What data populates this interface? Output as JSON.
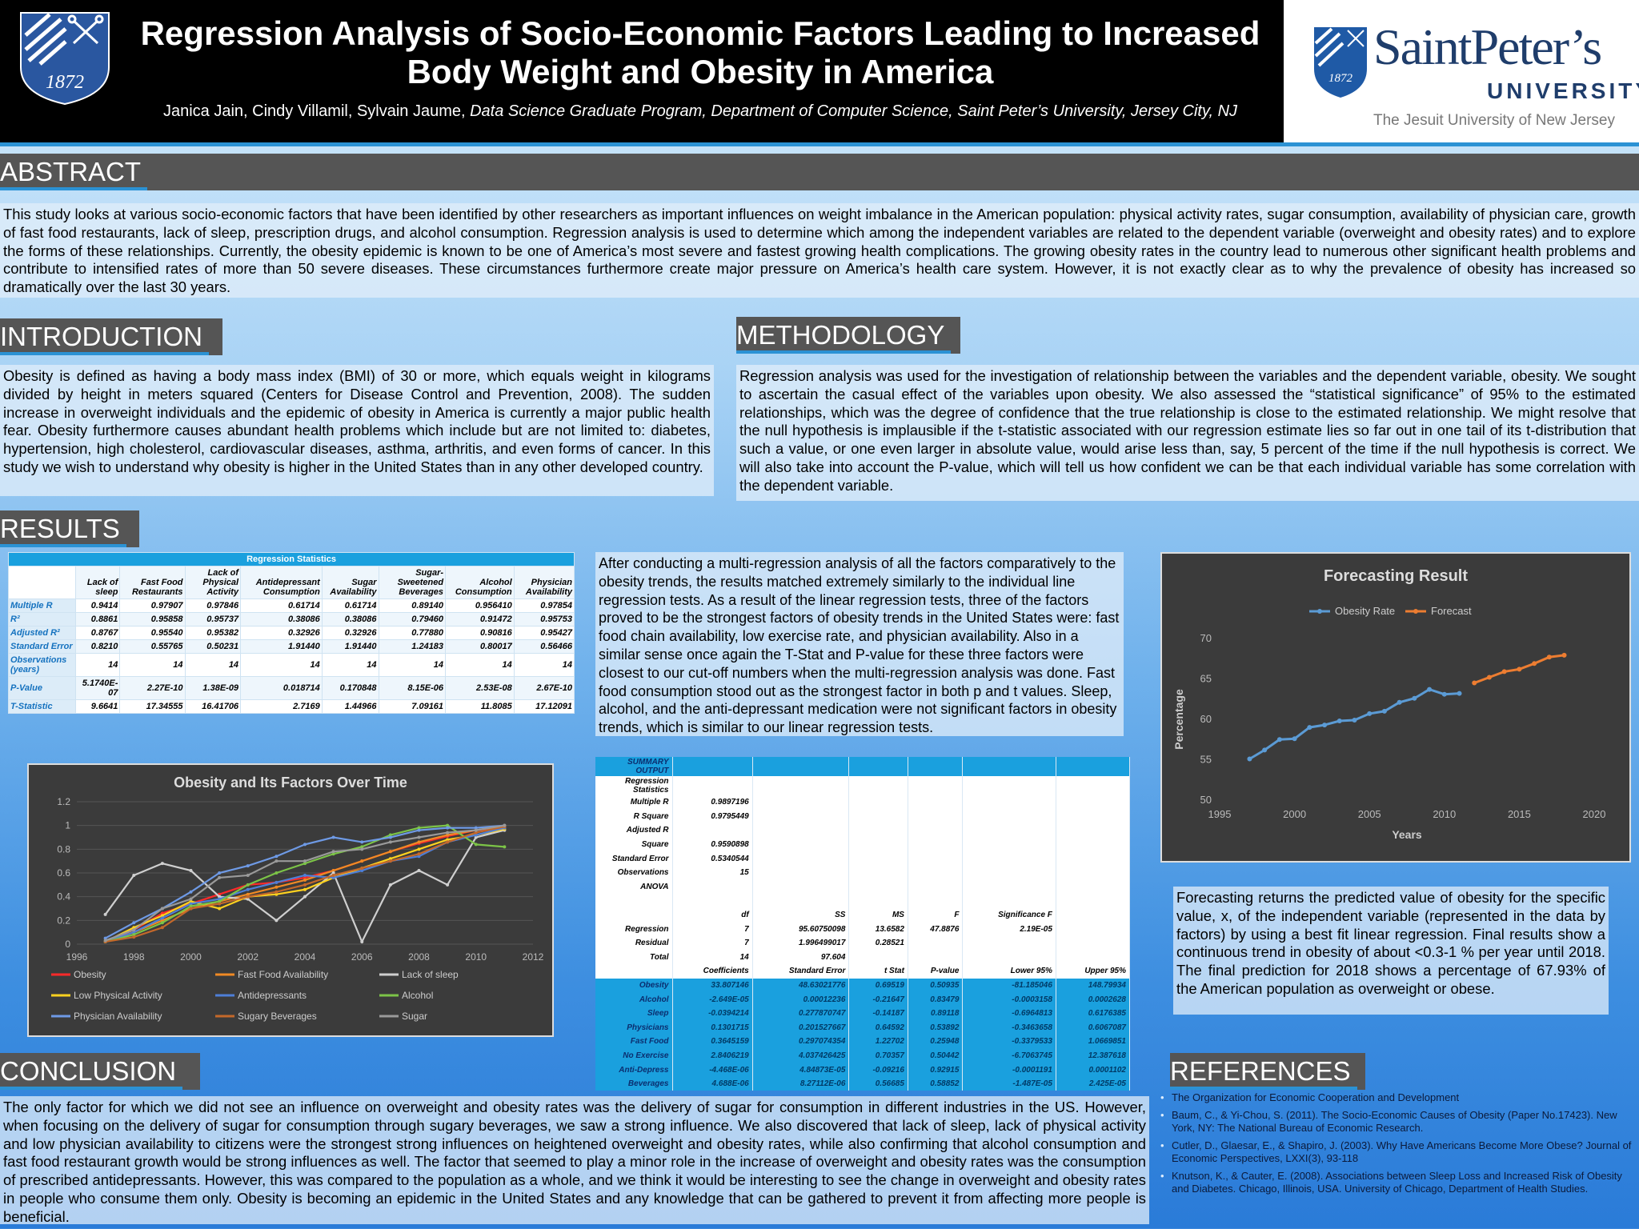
{
  "header": {
    "title_line1": "Regression Analysis of Socio-Economic Factors Leading to Increased",
    "title_line2": "Body Weight and Obesity in America",
    "authors": "Janica Jain, Cindy Villamil, Sylvain Jaume, ",
    "affiliation": "Data Science Graduate Program, Department of Computer Science, Saint Peter’s University, Jersey City, NJ",
    "logo_year": "1872",
    "university_name": "SaintPeter’s",
    "university_word": "UNIVERSITY",
    "university_tagline": "The Jesuit University of New Jersey"
  },
  "abstract": {
    "heading": "ABSTRACT",
    "text": "This study looks at various socio-economic factors that have been identified by other researchers as important influences on weight imbalance in the American population: physical activity rates, sugar consumption, availability of physician care, growth of fast food restaurants, lack of sleep, prescription drugs, and alcohol consumption. Regression analysis is used to determine which among the independent variables are related to the dependent variable (overweight and obesity rates) and to explore the forms of these relationships. Currently, the obesity epidemic is known to be one of America’s most severe and fastest growing health complications. The growing obesity rates in the country lead to numerous other significant health problems and contribute to intensified rates of more than 50 severe diseases. These circumstances furthermore create major pressure on America’s health care system. However, it is not exactly clear as to why the prevalence of obesity has increased so dramatically over the last 30 years."
  },
  "introduction": {
    "heading": "INTRODUCTION",
    "text": "Obesity is defined as having a body mass index (BMI) of 30 or more, which equals weight in kilograms divided by height in meters squared (Centers for Disease Control and Prevention, 2008). The sudden increase in overweight individuals and the epidemic of obesity in America is currently a major public health fear. Obesity furthermore causes abundant health problems which include but are not limited to: diabetes, hypertension, high cholesterol, cardiovascular diseases, asthma, arthritis, and even forms of cancer.  In this study we wish to understand why obesity is higher in the United States than in any other developed country."
  },
  "methodology": {
    "heading": "METHODOLOGY",
    "text": "Regression analysis was used for the investigation of relationship between the variables and the dependent variable, obesity. We sought to ascertain the casual effect of the variables upon obesity. We also assessed the “statistical significance” of 95% to the estimated relationships, which was the degree of confidence that the true relationship is close to the estimated relationship. We might resolve that the null hypothesis is implausible if the t-statistic associated with our regression estimate lies so far out in one tail of its t-distribution that such a value, or one even larger in absolute value, would arise less than, say, 5 percent of the time if the null hypothesis is correct. We will also take into account the P-value, which will tell us how confident we can be that each individual variable has some correlation with the dependent variable."
  },
  "results": {
    "heading": "RESULTS",
    "text": "After conducting a multi-regression analysis of all the factors comparatively to the obesity trends, the results matched extremely similarly to the individual line regression tests. As a result of the linear regression tests, three of the factors proved to be the strongest factors of obesity trends in the United States were: fast food chain availability, low exercise rate, and physician availability. Also in a similar sense once again the T-Stat and P-value for these three factors were closest to our cut-off numbers when the multi-regression analysis was done. Fast food consumption stood out as the strongest factor in both p and t values. Sleep, alcohol, and the anti-depressant medication were not significant factors in obesity trends, which is similar to our linear regression tests.",
    "reg_table": {
      "caption": "Regression Statistics",
      "columns": [
        "Lack of sleep",
        "Fast Food Restaurants",
        "Lack of Physical Activity",
        "Antidepressant Consumption",
        "Sugar Availability",
        "Sugar-Sweetened Beverages",
        "Alcohol Consumption",
        "Physician Availability"
      ],
      "rows": [
        {
          "label": "Multiple R",
          "values": [
            "0.9414",
            "0.97907",
            "0.97846",
            "0.61714",
            "0.61714",
            "0.89140",
            "0.956410",
            "0.97854"
          ]
        },
        {
          "label": "R²",
          "values": [
            "0.8861",
            "0.95858",
            "0.95737",
            "0.38086",
            "0.38086",
            "0.79460",
            "0.91472",
            "0.95753"
          ]
        },
        {
          "label": "Adjusted R²",
          "values": [
            "0.8767",
            "0.95540",
            "0.95382",
            "0.32926",
            "0.32926",
            "0.77880",
            "0.90816",
            "0.95427"
          ]
        },
        {
          "label": "Standard Error",
          "values": [
            "0.8210",
            "0.55765",
            "0.50231",
            "1.91440",
            "1.91440",
            "1.24183",
            "0.80017",
            "0.56466"
          ]
        },
        {
          "label": "Observations (years)",
          "values": [
            "14",
            "14",
            "14",
            "14",
            "14",
            "14",
            "14",
            "14"
          ]
        },
        {
          "label": "P-Value",
          "values": [
            "5.1740E-07",
            "2.27E-10",
            "1.38E-09",
            "0.018714",
            "0.170848",
            "8.15E-06",
            "2.53E-08",
            "2.67E-10"
          ]
        },
        {
          "label": "T-Statistic",
          "values": [
            "9.6641",
            "17.34555",
            "16.41706",
            "2.7169",
            "1.44966",
            "7.09161",
            "11.8085",
            "17.12091"
          ]
        }
      ]
    },
    "summary": {
      "rows": [
        [
          "SUMMARY OUTPUT",
          "",
          "",
          "",
          "",
          ""
        ],
        [
          "Regression Statistics",
          "",
          "",
          "",
          "",
          ""
        ],
        [
          "Multiple R",
          "0.9897196",
          "",
          "",
          "",
          ""
        ],
        [
          "R Square",
          "0.9795449",
          "",
          "",
          "",
          ""
        ],
        [
          "Adjusted R",
          "",
          "",
          "",
          "",
          ""
        ],
        [
          "Square",
          "0.9590898",
          "",
          "",
          "",
          ""
        ],
        [
          "Standard Error",
          "0.5340544",
          "",
          "",
          "",
          ""
        ],
        [
          "Observations",
          "15",
          "",
          "",
          "",
          ""
        ],
        [
          "ANOVA",
          "",
          "",
          "",
          "",
          ""
        ],
        [
          "",
          "",
          "",
          "",
          "",
          ""
        ],
        [
          "df",
          "SS",
          "MS",
          "F",
          "Significance F",
          ""
        ],
        [
          "Regression",
          "7",
          "95.60750098",
          "13.6582",
          "47.8876",
          "2.19E-05"
        ],
        [
          "Residual",
          "7",
          "1.996499017",
          "0.28521",
          "",
          ""
        ],
        [
          "Total",
          "14",
          "97.604",
          "",
          "",
          ""
        ],
        [
          "Coefficients",
          "Standard Error",
          "t Stat",
          "P-value",
          "Lower 95%",
          "Upper 95%"
        ],
        [
          "Obesity",
          "33.807146",
          "48.63021776",
          "0.69519",
          "0.50935",
          "-81.185046",
          "148.79934"
        ],
        [
          "Alcohol",
          "-2.649E-05",
          "0.00012236",
          "-0.21647",
          "0.83479",
          "-0.0003158",
          "0.0002628"
        ],
        [
          "Sleep",
          "-0.0394214",
          "0.277870747",
          "-0.14187",
          "0.89118",
          "-0.6964813",
          "0.6176385"
        ],
        [
          "Physicians",
          "0.1301715",
          "0.201527667",
          "0.64592",
          "0.53892",
          "-0.3463658",
          "0.6067087"
        ],
        [
          "Fast Food",
          "0.3645159",
          "0.297074354",
          "1.22702",
          "0.25948",
          "-0.3379533",
          "1.0669851"
        ],
        [
          "No Exercise",
          "2.8406219",
          "4.037426425",
          "0.70357",
          "0.50442",
          "-6.7063745",
          "12.387618"
        ],
        [
          "Anti-Depress",
          "-4.468E-06",
          "4.84873E-05",
          "-0.09216",
          "0.92915",
          "-0.0001191",
          "0.0001102"
        ],
        [
          "Beverages",
          "4.688E-06",
          "8.27112E-06",
          "0.56685",
          "0.58852",
          "-1.487E-05",
          "2.425E-05"
        ]
      ]
    }
  },
  "forecast_text": "Forecasting returns the predicted value of obesity for the specific value, x, of the independent variable (represented in the data by factors) by using a best fit linear regression. Final results show a continuous trend in obesity of about <0.3-1 % per year until 2018. The final prediction for 2018 shows a percentage of 67.93% of the American population as overweight or obese.",
  "conclusion": {
    "heading": "CONCLUSION",
    "text": "The only factor for which we did not see an influence on overweight and obesity rates was the delivery of sugar for consumption in different industries in the US. However, when focusing on the delivery of sugar for consumption through sugary beverages, we saw a strong influence. We also discovered that lack of sleep, lack of physical activity and low physician availability to citizens were the strongest strong influences on heightened overweight and obesity rates, while also confirming that alcohol consumption and fast food restaurant growth would be strong influences as well. The factor that seemed to play a minor role in the increase of overweight and obesity rates was the consumption of prescribed antidepressants. However, this was compared to the population as a whole, and we think it would be interesting to see the change in overweight and obesity rates in people who consume them only. Obesity is becoming an epidemic in the United States and any knowledge that can be gathered to prevent it from affecting more people is beneficial."
  },
  "references": {
    "heading": "REFERENCES",
    "items": [
      "The Organization for Economic Cooperation and Development",
      "Baum, C., & Yi-Chou, S. (2011). The Socio-Economic Causes of Obesity (Paper No.17423). New York, NY: The National Bureau of Economic Research.",
      " Cutler, D., Glaesar, E., & Shapiro, J. (2003). Why Have Americans Become More Obese? Journal of Economic Perspectives, LXXI(3), 93-118",
      "Knutson, K., & Cauter, E. (2008). Associations between Sleep Loss and Increased Risk of Obesity and Diabetes. Chicago, Illinois, USA. University of Chicago, Department of Health Studies."
    ]
  },
  "colors": {
    "header_bg": "#000000",
    "section_head_bg": "#555555",
    "accent_blue": "#2b92d4",
    "table_header": "#1aa0de"
  },
  "chart_data": [
    {
      "type": "line",
      "title": "Obesity and Its Factors Over Time",
      "xlabel": "",
      "ylabel": "",
      "xlim": [
        1996,
        2012
      ],
      "ylim": [
        0,
        1.2
      ],
      "x_ticks": [
        "1996",
        "1998",
        "2000",
        "2002",
        "2004",
        "2006",
        "2008",
        "2010",
        "2012"
      ],
      "y_ticks": [
        "0",
        "0.2",
        "0.4",
        "0.6",
        "0.8",
        "1",
        "1.2"
      ],
      "legend_position": "bottom",
      "x": [
        1997,
        1998,
        1999,
        2000,
        2001,
        2002,
        2003,
        2004,
        2005,
        2006,
        2007,
        2008,
        2009,
        2010,
        2011
      ],
      "series": [
        {
          "name": "Obesity",
          "color": "#ff2a2a",
          "values": [
            0.02,
            0.12,
            0.26,
            0.34,
            0.42,
            0.5,
            0.52,
            0.56,
            0.62,
            0.7,
            0.78,
            0.85,
            0.91,
            0.96,
            0.99
          ]
        },
        {
          "name": "Fast Food Availability",
          "color": "#f08a24",
          "values": [
            0.02,
            0.1,
            0.2,
            0.3,
            0.36,
            0.42,
            0.48,
            0.54,
            0.62,
            0.7,
            0.78,
            0.86,
            0.92,
            0.96,
            1.0
          ]
        },
        {
          "name": "Lack of sleep",
          "color": "#cfcfcf",
          "values": [
            0.25,
            0.58,
            0.68,
            0.62,
            0.4,
            0.38,
            0.2,
            0.4,
            0.6,
            0.02,
            0.5,
            0.62,
            0.5,
            0.9,
            0.96
          ]
        },
        {
          "name": "Low Physical Activity",
          "color": "#ffd21f",
          "values": [
            0.02,
            0.14,
            0.24,
            0.36,
            0.3,
            0.4,
            0.42,
            0.46,
            0.56,
            0.64,
            0.72,
            0.8,
            0.88,
            0.92,
            0.97
          ]
        },
        {
          "name": "Antidepressants",
          "color": "#4e7fd8",
          "values": [
            0.02,
            0.1,
            0.22,
            0.34,
            0.38,
            0.46,
            0.52,
            0.58,
            0.56,
            0.62,
            0.7,
            0.74,
            0.86,
            0.92,
            0.98
          ]
        },
        {
          "name": "Alcohol",
          "color": "#7cc447",
          "values": [
            0.02,
            0.08,
            0.18,
            0.32,
            0.36,
            0.5,
            0.6,
            0.68,
            0.76,
            0.82,
            0.92,
            0.98,
            1.0,
            0.84,
            0.82
          ]
        },
        {
          "name": "Physician Availability",
          "color": "#6e9ae6",
          "values": [
            0.05,
            0.18,
            0.3,
            0.44,
            0.6,
            0.66,
            0.74,
            0.84,
            0.9,
            0.86,
            0.9,
            0.96,
            0.98,
            0.98,
            1.0
          ]
        },
        {
          "name": "Sugary Beverages",
          "color": "#c4682a",
          "values": [
            0.02,
            0.06,
            0.14,
            0.3,
            0.34,
            0.4,
            0.44,
            0.5,
            0.58,
            0.64,
            0.7,
            0.76,
            0.86,
            0.94,
            0.99
          ]
        },
        {
          "name": "Sugar",
          "color": "#9a9a9a",
          "values": [
            0.03,
            0.12,
            0.3,
            0.38,
            0.56,
            0.58,
            0.7,
            0.7,
            0.78,
            0.8,
            0.86,
            0.9,
            0.94,
            0.96,
            1.0
          ]
        }
      ]
    },
    {
      "type": "line",
      "title": "Forecasting Result",
      "xlabel": "Years",
      "ylabel": "Percentage",
      "xlim": [
        1995,
        2020
      ],
      "ylim": [
        50,
        70
      ],
      "x_ticks": [
        "1995",
        "2000",
        "2005",
        "2010",
        "2015",
        "2020"
      ],
      "y_ticks": [
        "50",
        "55",
        "60",
        "65",
        "70"
      ],
      "legend_position": "top",
      "series": [
        {
          "name": "Obesity Rate",
          "color": "#5b9bd5",
          "x": [
            1997,
            1998,
            1999,
            2000,
            2001,
            2002,
            2003,
            2004,
            2005,
            2006,
            2007,
            2008,
            2009,
            2010,
            2011
          ],
          "values": [
            55.1,
            56.2,
            57.5,
            57.6,
            59.0,
            59.3,
            59.8,
            59.9,
            60.7,
            61.0,
            62.1,
            62.6,
            63.7,
            63.1,
            63.2
          ]
        },
        {
          "name": "Forecast",
          "color": "#ed7d31",
          "x": [
            2012,
            2013,
            2014,
            2015,
            2016,
            2017,
            2018
          ],
          "values": [
            64.5,
            65.2,
            65.9,
            66.2,
            66.9,
            67.7,
            67.93
          ]
        }
      ]
    }
  ]
}
